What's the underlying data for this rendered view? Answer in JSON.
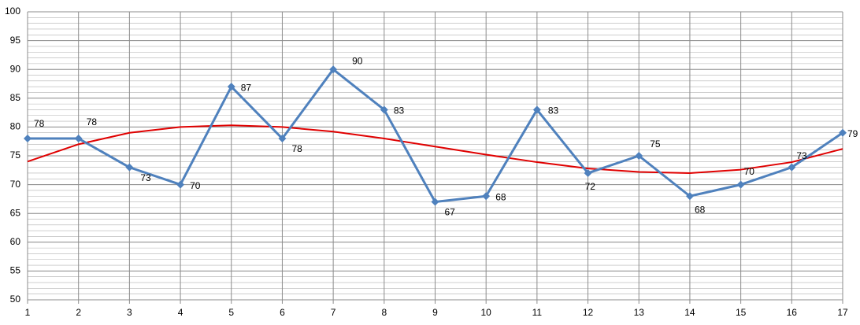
{
  "chart_data": {
    "type": "line",
    "x": [
      1,
      2,
      3,
      4,
      5,
      6,
      7,
      8,
      9,
      10,
      11,
      12,
      13,
      14,
      15,
      16,
      17
    ],
    "xlim": [
      1,
      17
    ],
    "xticks": [
      1,
      2,
      3,
      4,
      5,
      6,
      7,
      8,
      9,
      10,
      11,
      12,
      13,
      14,
      15,
      16,
      17
    ],
    "ylim": [
      50,
      100
    ],
    "yticks": [
      50,
      55,
      60,
      65,
      70,
      75,
      80,
      85,
      90,
      95,
      100
    ],
    "y_minor_step": 1,
    "grid": true,
    "series": [
      {
        "color": "#4f81bd",
        "marker": "diamond",
        "data_labels": true,
        "values": [
          78,
          78,
          73,
          70,
          87,
          78,
          90,
          83,
          67,
          68,
          83,
          72,
          75,
          68,
          70,
          73,
          79
        ]
      },
      {
        "color": "#e00000",
        "marker": "none",
        "data_labels": false,
        "values": [
          74,
          77,
          79,
          80,
          80.3,
          80,
          79.2,
          78,
          76.6,
          75.2,
          73.9,
          72.8,
          72.2,
          72,
          72.6,
          73.9,
          76.2
        ]
      }
    ]
  }
}
